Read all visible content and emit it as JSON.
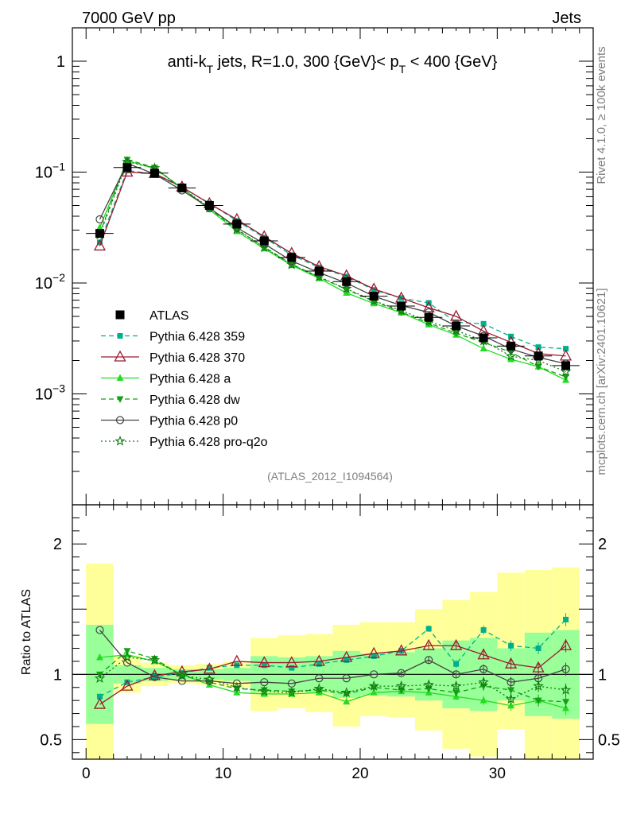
{
  "header": {
    "left": "7000 GeV pp",
    "right": "Jets"
  },
  "side_labels": {
    "rivet": "Rivet 4.1.0, ≥ 100k events",
    "mcplots": "mcplots.cern.ch [arXiv:2401.10621]"
  },
  "chart_data": {
    "type": "line",
    "title_parts": {
      "a": "anti-k",
      "a_sub": "T",
      "b": " jets, R=1.0, 300 {GeV}< p",
      "b_sub": "T",
      "c": " < 400 {GeV}"
    },
    "analysis_id": "(ATLAS_2012_I1094564)",
    "main_panel": {
      "yscale": "log",
      "ylim": [
        0.0001,
        2
      ],
      "y_ticks": [
        {
          "value": 1,
          "label": "1",
          "base": "",
          "exp": ""
        },
        {
          "value": 0.1,
          "label": "",
          "base": "10",
          "exp": "−1"
        },
        {
          "value": 0.01,
          "label": "",
          "base": "10",
          "exp": "−2"
        },
        {
          "value": 0.001,
          "label": "",
          "base": "10",
          "exp": "−3"
        }
      ]
    },
    "ratio_panel": {
      "ylabel": "Ratio to ATLAS",
      "ylim": [
        0.35,
        2.3
      ],
      "y_ticks": [
        {
          "value": 0.5,
          "label": "0.5"
        },
        {
          "value": 1,
          "label": "1"
        },
        {
          "value": 2,
          "label": "2"
        }
      ]
    },
    "x_axis": {
      "xlim": [
        -1,
        37
      ],
      "ticks": [
        {
          "value": 0,
          "label": "0"
        },
        {
          "value": 10,
          "label": "10"
        },
        {
          "value": 20,
          "label": "20"
        },
        {
          "value": 30,
          "label": "30"
        }
      ]
    },
    "x": [
      1,
      3,
      5,
      7,
      9,
      11,
      13,
      15,
      17,
      19,
      21,
      23,
      25,
      27,
      29,
      31,
      33,
      35
    ],
    "data": {
      "name": "ATLAS",
      "values": [
        0.028,
        0.11,
        0.098,
        0.072,
        0.05,
        0.034,
        0.024,
        0.017,
        0.0128,
        0.0103,
        0.0076,
        0.0062,
        0.0049,
        0.0041,
        0.0032,
        0.0027,
        0.0022,
        0.0018
      ],
      "band_outer": [
        [
          0.0,
          1.85
        ],
        [
          0.86,
          1.14
        ],
        [
          0.91,
          1.09
        ],
        [
          0.93,
          1.07
        ],
        [
          0.92,
          1.08
        ],
        [
          0.9,
          1.1
        ],
        [
          0.72,
          1.28
        ],
        [
          0.74,
          1.3
        ],
        [
          0.71,
          1.31
        ],
        [
          0.6,
          1.38
        ],
        [
          0.68,
          1.4
        ],
        [
          0.67,
          1.4
        ],
        [
          0.57,
          1.5
        ],
        [
          0.43,
          1.57
        ],
        [
          0.37,
          1.63
        ],
        [
          0.58,
          1.78
        ],
        [
          0.35,
          1.8
        ],
        [
          0.35,
          1.82
        ]
      ],
      "band_inner": [
        [
          0.62,
          1.38
        ],
        [
          0.93,
          1.07
        ],
        [
          0.95,
          1.05
        ],
        [
          0.96,
          1.04
        ],
        [
          0.96,
          1.04
        ],
        [
          0.95,
          1.05
        ],
        [
          0.86,
          1.14
        ],
        [
          0.87,
          1.13
        ],
        [
          0.86,
          1.14
        ],
        [
          0.82,
          1.18
        ],
        [
          0.84,
          1.16
        ],
        [
          0.83,
          1.17
        ],
        [
          0.8,
          1.2
        ],
        [
          0.74,
          1.26
        ],
        [
          0.72,
          1.28
        ],
        [
          0.8,
          1.2
        ],
        [
          0.68,
          1.32
        ],
        [
          0.66,
          1.34
        ]
      ]
    },
    "series": [
      {
        "name": "Pythia 6.428 359",
        "color": "#00b08a",
        "dash": "6,4",
        "marker": "square-small",
        "ratio": [
          0.83,
          0.94,
          0.98,
          1.01,
          1.05,
          1.07,
          1.07,
          1.05,
          1.08,
          1.11,
          1.14,
          1.18,
          1.35,
          1.08,
          1.34,
          1.22,
          1.2,
          1.42
        ]
      },
      {
        "name": "Pythia 6.428 370",
        "color": "#9b1b30",
        "dash": "",
        "marker": "triangle-up-open",
        "ratio": [
          0.77,
          0.91,
          0.99,
          1.02,
          1.04,
          1.1,
          1.09,
          1.09,
          1.1,
          1.13,
          1.16,
          1.18,
          1.22,
          1.22,
          1.15,
          1.08,
          1.05,
          1.22
        ]
      },
      {
        "name": "Pythia 6.428 a",
        "color": "#22dd22",
        "dash": "",
        "marker": "triangle-up",
        "ratio": [
          1.13,
          1.15,
          1.1,
          1.0,
          0.92,
          0.86,
          0.85,
          0.85,
          0.86,
          0.79,
          0.86,
          0.87,
          0.86,
          0.83,
          0.8,
          0.76,
          0.8,
          0.74
        ]
      },
      {
        "name": "Pythia 6.428 dw",
        "color": "#13a013",
        "dash": "6,4",
        "marker": "triangle-down",
        "ratio": [
          1.0,
          1.18,
          1.12,
          0.99,
          0.94,
          0.89,
          0.88,
          0.87,
          0.88,
          0.85,
          0.9,
          0.88,
          0.89,
          0.86,
          0.91,
          0.88,
          0.8,
          0.79
        ]
      },
      {
        "name": "Pythia 6.428 p0",
        "color": "#444444",
        "dash": "",
        "marker": "circle-open",
        "ratio": [
          1.34,
          1.09,
          0.98,
          0.95,
          0.95,
          0.93,
          0.94,
          0.93,
          0.97,
          0.97,
          1.0,
          1.01,
          1.11,
          1.0,
          1.04,
          0.94,
          0.97,
          1.04
        ]
      },
      {
        "name": "Pythia 6.428 pro-q2o",
        "color": "#117a11",
        "dash": "2,3",
        "marker": "star-open",
        "ratio": [
          0.97,
          1.13,
          1.11,
          0.99,
          0.96,
          0.9,
          0.87,
          0.86,
          0.89,
          0.86,
          0.91,
          0.91,
          0.92,
          0.91,
          0.94,
          0.81,
          0.91,
          0.88
        ]
      }
    ]
  }
}
